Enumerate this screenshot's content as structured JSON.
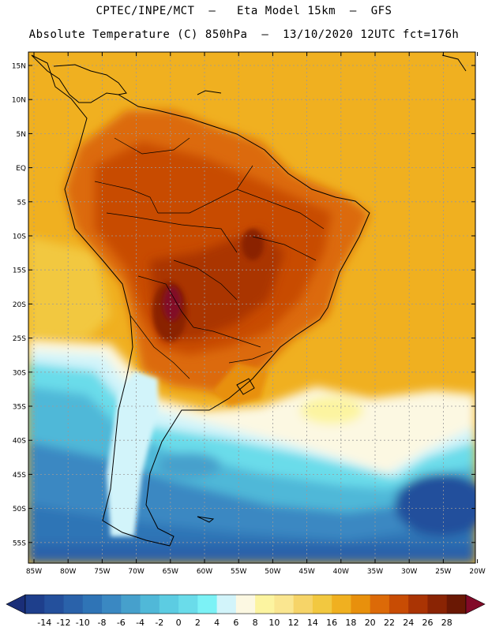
{
  "header": {
    "line1": "CPTEC/INPE/MCT  –   Eta Model 15km  –  GFS",
    "line2": "Absolute Temperature (C) 850hPa  –  13/10/2020 12UTC fct=176h"
  },
  "map": {
    "lat_labels": [
      "15N",
      "10N",
      "5N",
      "EQ",
      "5S",
      "10S",
      "15S",
      "20S",
      "25S",
      "30S",
      "35S",
      "40S",
      "45S",
      "50S",
      "55S"
    ],
    "lon_labels": [
      "85W",
      "80W",
      "75W",
      "70W",
      "65W",
      "60W",
      "55W",
      "50W",
      "45W",
      "40W",
      "35W",
      "30W",
      "25W",
      "20W"
    ],
    "ocean_color": "#f0b020",
    "land_hot_color": "#c25a0e"
  },
  "colorbar": {
    "labels": [
      "-14",
      "-12",
      "-10",
      "-8",
      "-6",
      "-4",
      "-2",
      "0",
      "2",
      "4",
      "6",
      "8",
      "10",
      "12",
      "14",
      "16",
      "18",
      "20",
      "22",
      "24",
      "26",
      "28"
    ],
    "colors": [
      "#1e3f8c",
      "#24509c",
      "#2a62aa",
      "#2f74b6",
      "#3a88c2",
      "#46a0cc",
      "#50b8d8",
      "#5ccce2",
      "#6adcea",
      "#7cf2f6",
      "#d2f4fa",
      "#fcf8e2",
      "#fcf4a0",
      "#fae690",
      "#f6d468",
      "#f2c840",
      "#f0b020",
      "#e8900c",
      "#dc6a08",
      "#c84c04",
      "#aa3404",
      "#8a2404",
      "#6a1804"
    ],
    "low_end_color": "#1a2e78",
    "high_end_color": "#820a28"
  }
}
